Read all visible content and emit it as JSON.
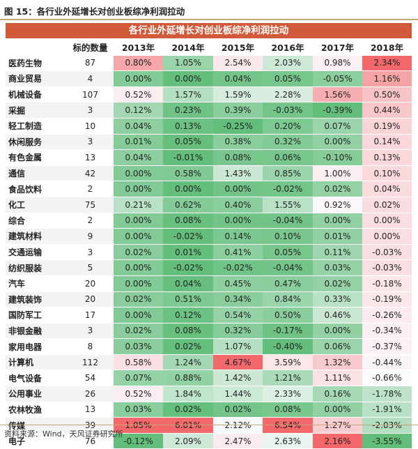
{
  "figure_title": "图 15：各行业外延增长对创业板综净利润拉动",
  "banner": "各行业外延增长对创业板综净利润拉动",
  "columns": [
    "",
    "标的数量",
    "2013年",
    "2014年",
    "2015年",
    "2016年",
    "2017年",
    "2018年"
  ],
  "rows": [
    {
      "name": "医药生物",
      "count": "87",
      "v": [
        "0.80%",
        "1.05%",
        "2.54%",
        "2.03%",
        "0.98%",
        "2.34%"
      ]
    },
    {
      "name": "商业贸易",
      "count": "4",
      "v": [
        "0.00%",
        "0.00%",
        "0.04%",
        "0.05%",
        "-0.05%",
        "1.16%"
      ]
    },
    {
      "name": "机械设备",
      "count": "107",
      "v": [
        "0.52%",
        "1.57%",
        "1.59%",
        "2.28%",
        "1.56%",
        "0.50%"
      ]
    },
    {
      "name": "采掘",
      "count": "3",
      "v": [
        "0.12%",
        "0.23%",
        "0.39%",
        "-0.03%",
        "-0.39%",
        "0.44%"
      ]
    },
    {
      "name": "轻工制造",
      "count": "10",
      "v": [
        "0.04%",
        "0.13%",
        "-0.25%",
        "0.20%",
        "0.07%",
        "0.19%"
      ]
    },
    {
      "name": "休闲服务",
      "count": "3",
      "v": [
        "0.01%",
        "0.05%",
        "0.38%",
        "0.32%",
        "0.00%",
        "0.14%"
      ]
    },
    {
      "name": "有色金属",
      "count": "13",
      "v": [
        "0.04%",
        "-0.01%",
        "0.08%",
        "0.06%",
        "-0.10%",
        "0.13%"
      ]
    },
    {
      "name": "通信",
      "count": "42",
      "v": [
        "0.00%",
        "0.58%",
        "1.43%",
        "0.85%",
        "1.00%",
        "0.10%"
      ]
    },
    {
      "name": "食品饮料",
      "count": "2",
      "v": [
        "0.00%",
        "0.00%",
        "0.00%",
        "-0.02%",
        "0.02%",
        "0.04%"
      ]
    },
    {
      "name": "化工",
      "count": "75",
      "v": [
        "0.21%",
        "0.62%",
        "0.40%",
        "1.55%",
        "0.92%",
        "0.02%"
      ]
    },
    {
      "name": "综合",
      "count": "2",
      "v": [
        "0.00%",
        "0.08%",
        "0.00%",
        "-0.04%",
        "0.00%",
        "0.00%"
      ]
    },
    {
      "name": "建筑材料",
      "count": "9",
      "v": [
        "0.00%",
        "-0.02%",
        "0.14%",
        "0.10%",
        "0.01%",
        "0.00%"
      ]
    },
    {
      "name": "交通运输",
      "count": "3",
      "v": [
        "0.02%",
        "0.01%",
        "0.41%",
        "0.05%",
        "0.11%",
        "-0.03%"
      ]
    },
    {
      "name": "纺织服装",
      "count": "5",
      "v": [
        "0.00%",
        "-0.02%",
        "-0.02%",
        "-0.04%",
        "0.03%",
        "-0.03%"
      ]
    },
    {
      "name": "汽车",
      "count": "20",
      "v": [
        "0.00%",
        "0.04%",
        "0.45%",
        "0.47%",
        "0.02%",
        "-0.18%"
      ]
    },
    {
      "name": "建筑装饰",
      "count": "20",
      "v": [
        "0.02%",
        "0.51%",
        "0.34%",
        "0.84%",
        "0.33%",
        "-0.19%"
      ]
    },
    {
      "name": "国防军工",
      "count": "17",
      "v": [
        "0.00%",
        "0.12%",
        "0.54%",
        "0.50%",
        "0.46%",
        "-0.26%"
      ]
    },
    {
      "name": "非银金融",
      "count": "3",
      "v": [
        "0.02%",
        "0.08%",
        "0.32%",
        "-0.17%",
        "0.00%",
        "-0.34%"
      ]
    },
    {
      "name": "家用电器",
      "count": "8",
      "v": [
        "0.03%",
        "0.02%",
        "1.07%",
        "-0.40%",
        "0.06%",
        "-0.37%"
      ]
    },
    {
      "name": "计算机",
      "count": "112",
      "v": [
        "0.58%",
        "1.24%",
        "4.67%",
        "3.59%",
        "1.32%",
        "-0.44%"
      ]
    },
    {
      "name": "电气设备",
      "count": "54",
      "v": [
        "0.07%",
        "0.88%",
        "1.42%",
        "1.21%",
        "1.11%",
        "-0.66%"
      ]
    },
    {
      "name": "公用事业",
      "count": "26",
      "v": [
        "0.52%",
        "1.84%",
        "1.44%",
        "2.33%",
        "0.16%",
        "-1.78%"
      ]
    },
    {
      "name": "农林牧渔",
      "count": "13",
      "v": [
        "0.03%",
        "0.02%",
        "0.02%",
        "0.08%",
        "0.00%",
        "-1.91%"
      ]
    },
    {
      "name": "传媒",
      "count": "39",
      "v": [
        "1.05%",
        "6.01%",
        "2.12%",
        "6.54%",
        "1.27%",
        "-2.03%"
      ]
    },
    {
      "name": "电子",
      "count": "76",
      "v": [
        "-0.12%",
        "2.09%",
        "2.47%",
        "2.63%",
        "2.16%",
        "-3.55%"
      ]
    }
  ],
  "source": "资料来源：Wind，天风证券研究所",
  "colors": {
    "banner": "#d05a3a",
    "positive": "#f2686b",
    "negative": "#63be7b",
    "neutral": "#fcfcff"
  }
}
